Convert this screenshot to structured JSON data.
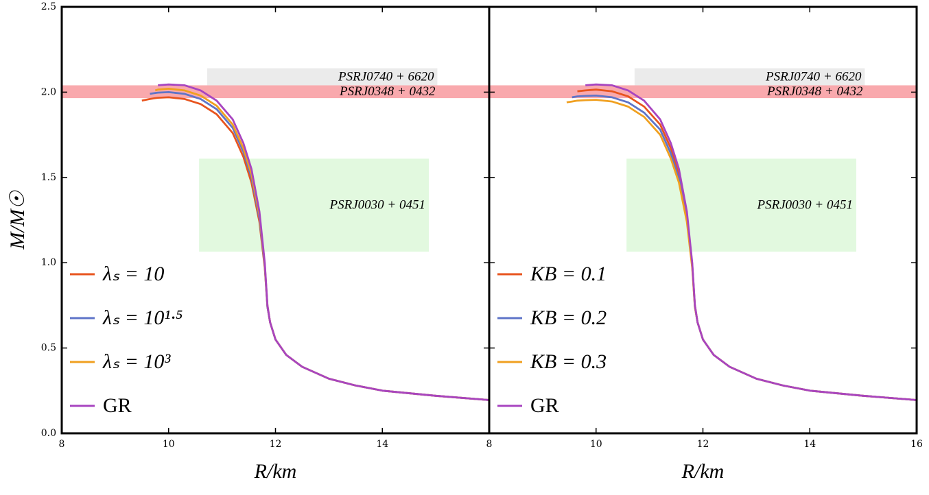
{
  "chart_data": [
    {
      "type": "line",
      "xlabel": "R/km",
      "ylabel": "M/M☉",
      "xlim": [
        8,
        16
      ],
      "ylim": [
        0,
        2.5
      ],
      "xticks": [
        8,
        10,
        12,
        14
      ],
      "yticks": [
        {
          "value": 0,
          "label": "0.0"
        },
        {
          "value": 0.5,
          "label": "0.5"
        },
        {
          "value": 1,
          "label": "1.0"
        },
        {
          "value": 1.5,
          "label": "1.5"
        },
        {
          "value": 2,
          "label": "2.0"
        },
        {
          "value": 2.5,
          "label": "2.5"
        }
      ],
      "bands": [
        {
          "label": "PSRJ0740 + 6620",
          "xlim": [
            10.72,
            15.03
          ],
          "ylim": [
            2.04,
            2.14
          ],
          "color": "#ebebeb"
        },
        {
          "label": "PSRJ0348 + 0432",
          "xlim": [
            8,
            16
          ],
          "ylim": [
            1.965,
            2.04
          ],
          "color": "#f9a9ad"
        },
        {
          "label": "PSRJ0030 + 0451",
          "xlim": [
            10.57,
            14.87
          ],
          "ylim": [
            1.065,
            1.61
          ],
          "color": "#e2f9df"
        }
      ],
      "x": [
        9.5,
        9.65,
        9.75,
        9.8,
        10.0,
        10.3,
        10.6,
        10.9,
        11.2,
        11.4,
        11.55,
        11.7,
        11.8,
        11.85,
        11.9,
        12.0,
        12.2,
        12.5,
        13,
        13.5,
        14,
        15,
        16
      ],
      "series": [
        {
          "name": "λₛ = 10",
          "color": "#e8541e",
          "values": [
            1.95,
            1.96,
            1.965,
            1.967,
            1.97,
            1.96,
            1.93,
            1.87,
            1.76,
            1.62,
            1.47,
            1.24,
            0.97,
            0.74,
            0.65,
            0.55,
            0.46,
            0.39,
            0.32,
            0.28,
            0.25,
            0.22,
            0.195
          ]
        },
        {
          "name": "λₛ = 10¹·⁵",
          "color": "#5e74c8",
          "values": [
            null,
            1.99,
            1.995,
            1.997,
            2.0,
            1.99,
            1.96,
            1.9,
            1.79,
            1.65,
            1.5,
            1.26,
            0.98,
            0.74,
            0.65,
            0.55,
            0.46,
            0.39,
            0.32,
            0.28,
            0.25,
            0.22,
            0.195
          ]
        },
        {
          "name": "λₛ = 10³",
          "color": "#f0a020",
          "values": [
            null,
            null,
            2.01,
            2.015,
            2.02,
            2.01,
            1.98,
            1.92,
            1.81,
            1.67,
            1.52,
            1.28,
            0.99,
            0.75,
            0.65,
            0.55,
            0.46,
            0.39,
            0.32,
            0.28,
            0.25,
            0.22,
            0.195
          ]
        },
        {
          "name": "GR",
          "color": "#a845c0",
          "values": [
            null,
            null,
            null,
            2.04,
            2.045,
            2.04,
            2.01,
            1.95,
            1.84,
            1.7,
            1.55,
            1.3,
            1.0,
            0.75,
            0.65,
            0.55,
            0.46,
            0.39,
            0.32,
            0.28,
            0.25,
            0.22,
            0.195
          ]
        }
      ]
    },
    {
      "type": "line",
      "xlabel": "R/km",
      "xlim": [
        8,
        16
      ],
      "ylim": [
        0,
        2.5
      ],
      "xticks": [
        8,
        10,
        12,
        14,
        16
      ],
      "bands": [
        {
          "label": "PSRJ0740 + 6620",
          "xlim": [
            10.72,
            15.03
          ],
          "ylim": [
            2.04,
            2.14
          ],
          "color": "#ebebeb"
        },
        {
          "label": "PSRJ0348 + 0432",
          "xlim": [
            8,
            16
          ],
          "ylim": [
            1.965,
            2.04
          ],
          "color": "#f9a9ad"
        },
        {
          "label": "PSRJ0030 + 0451",
          "xlim": [
            10.57,
            14.87
          ],
          "ylim": [
            1.065,
            1.61
          ],
          "color": "#e2f9df"
        }
      ],
      "x": [
        9.45,
        9.55,
        9.65,
        9.8,
        10.0,
        10.3,
        10.6,
        10.9,
        11.2,
        11.4,
        11.55,
        11.7,
        11.8,
        11.85,
        11.9,
        12.0,
        12.2,
        12.5,
        13,
        13.5,
        14,
        15,
        16
      ],
      "series": [
        {
          "name": "KB = 0.1",
          "color": "#e8541e",
          "values": [
            null,
            null,
            2.005,
            2.01,
            2.015,
            2.005,
            1.975,
            1.915,
            1.81,
            1.67,
            1.52,
            1.28,
            0.99,
            0.75,
            0.65,
            0.55,
            0.46,
            0.39,
            0.32,
            0.28,
            0.25,
            0.22,
            0.195
          ]
        },
        {
          "name": "KB = 0.2",
          "color": "#5e74c8",
          "values": [
            null,
            1.97,
            1.975,
            1.978,
            1.98,
            1.97,
            1.94,
            1.88,
            1.78,
            1.64,
            1.49,
            1.26,
            0.98,
            0.74,
            0.65,
            0.55,
            0.46,
            0.39,
            0.32,
            0.28,
            0.25,
            0.22,
            0.195
          ]
        },
        {
          "name": "KB = 0.3",
          "color": "#f0a020",
          "values": [
            1.94,
            1.945,
            1.95,
            1.953,
            1.955,
            1.945,
            1.915,
            1.855,
            1.75,
            1.61,
            1.47,
            1.24,
            0.97,
            0.74,
            0.65,
            0.55,
            0.46,
            0.39,
            0.32,
            0.28,
            0.25,
            0.22,
            0.195
          ]
        },
        {
          "name": "GR",
          "color": "#a845c0",
          "values": [
            null,
            null,
            null,
            2.04,
            2.045,
            2.04,
            2.01,
            1.95,
            1.84,
            1.7,
            1.55,
            1.3,
            1.0,
            0.75,
            0.65,
            0.55,
            0.46,
            0.39,
            0.32,
            0.28,
            0.25,
            0.22,
            0.195
          ]
        }
      ]
    }
  ]
}
